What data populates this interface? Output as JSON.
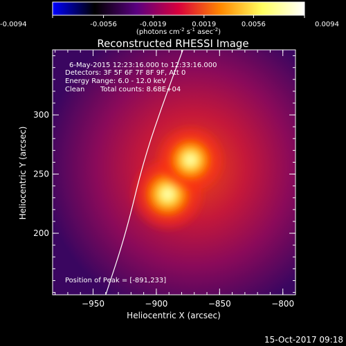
{
  "chart_data": {
    "type": "heatmap",
    "title": "Reconstructed RHESSI Image",
    "xlabel": "Heliocentric X (arcsec)",
    "ylabel": "Heliocentric Y (arcsec)",
    "xlim": [
      -982,
      -790
    ],
    "ylim": [
      148,
      355
    ],
    "xticks": [
      -950,
      -900,
      -850,
      -800
    ],
    "yticks": [
      200,
      250,
      300
    ],
    "minor_xtick_step": 10,
    "minor_ytick_step": 10,
    "colorbar": {
      "range": [
        -0.0094,
        0.0094
      ],
      "ticks": [
        "-0.0094",
        "-0.0056",
        "-0.0019",
        "0.0019",
        "0.0056",
        "0.0094"
      ],
      "unit_main": "(photons cm",
      "unit_exp1": "-2",
      "unit_mid1": " s",
      "unit_exp2": "-1",
      "unit_mid2": " asec",
      "unit_exp3": "-2",
      "unit_end": ")",
      "colors": [
        "#0000ff",
        "#000000",
        "#5a0080",
        "#d8003c",
        "#ff8800",
        "#ffff60",
        "#ffffff"
      ]
    },
    "annotations": [
      "6-May-2015 12:23:16.000 to 12:33:16.000",
      "Detectors: 3F 5F 6F 7F 8F 9F, Att 0",
      "Energy Range: 6.0 - 12.0 keV",
      "Clean",
      "Total counts: 8.68E+04"
    ],
    "peak_label": "Position of Peak = [-891,233]",
    "sources": [
      {
        "x": -891,
        "y": 233,
        "radius": 14
      },
      {
        "x": -873,
        "y": 262,
        "radius": 13
      }
    ],
    "limb": [
      {
        "x": -940,
        "y": 148
      },
      {
        "x": -924,
        "y": 200
      },
      {
        "x": -910,
        "y": 262
      },
      {
        "x": -892,
        "y": 318
      },
      {
        "x": -873,
        "y": 372
      }
    ]
  },
  "footer_date": "15-Oct-2017 09:18"
}
